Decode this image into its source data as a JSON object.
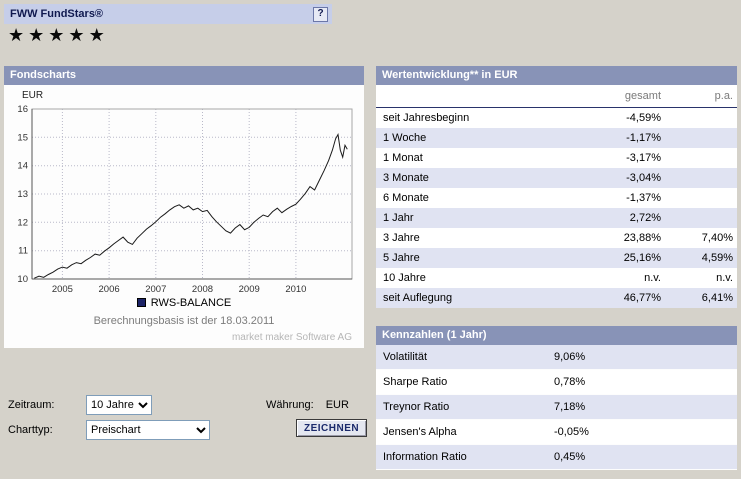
{
  "colors": {
    "page_bg": "#d5d2ca",
    "topbar_bg": "#c6cee9",
    "header_bg": "#8893b7",
    "row_alt": "#e0e3f2",
    "line": "#1a1a1a",
    "navy": "#10194f"
  },
  "header": {
    "title": "FWW FundStars®",
    "help_label": "?",
    "stars": 5
  },
  "fondscharts": {
    "title": "Fondscharts",
    "y_axis_label": "EUR",
    "legend": "RWS-BALANCE",
    "basis_note": "Berechnungsbasis ist der 18.03.2011",
    "watermark": "market maker Software AG",
    "controls": {
      "zeitraum_label": "Zeitraum:",
      "zeitraum_value": "10 Jahre",
      "charttyp_label": "Charttyp:",
      "charttyp_value": "Preischart",
      "waehrung_label": "Währung:",
      "waehrung_value": "EUR",
      "zeichnen_label": "ZEICHNEN"
    }
  },
  "chart_data": {
    "type": "line",
    "title": "RWS-BALANCE",
    "ylabel": "EUR",
    "ylim": [
      10,
      16
    ],
    "yticks": [
      10,
      11,
      12,
      13,
      14,
      15,
      16
    ],
    "xticks": [
      2005,
      2006,
      2007,
      2008,
      2009,
      2010
    ],
    "x_range": [
      2004.35,
      2011.2
    ],
    "grid": true,
    "legend_position": "bottom",
    "series": [
      {
        "name": "RWS-BALANCE",
        "points": [
          [
            2004.4,
            10.03
          ],
          [
            2004.5,
            10.1
          ],
          [
            2004.6,
            10.06
          ],
          [
            2004.7,
            10.16
          ],
          [
            2004.8,
            10.24
          ],
          [
            2004.9,
            10.35
          ],
          [
            2005.0,
            10.42
          ],
          [
            2005.1,
            10.38
          ],
          [
            2005.2,
            10.5
          ],
          [
            2005.3,
            10.58
          ],
          [
            2005.4,
            10.54
          ],
          [
            2005.5,
            10.66
          ],
          [
            2005.6,
            10.76
          ],
          [
            2005.7,
            10.88
          ],
          [
            2005.8,
            10.84
          ],
          [
            2005.9,
            10.98
          ],
          [
            2006.0,
            11.1
          ],
          [
            2006.1,
            11.24
          ],
          [
            2006.2,
            11.36
          ],
          [
            2006.3,
            11.48
          ],
          [
            2006.4,
            11.3
          ],
          [
            2006.5,
            11.22
          ],
          [
            2006.6,
            11.44
          ],
          [
            2006.7,
            11.6
          ],
          [
            2006.8,
            11.76
          ],
          [
            2006.9,
            11.88
          ],
          [
            2007.0,
            12.02
          ],
          [
            2007.1,
            12.18
          ],
          [
            2007.2,
            12.3
          ],
          [
            2007.3,
            12.44
          ],
          [
            2007.4,
            12.55
          ],
          [
            2007.5,
            12.62
          ],
          [
            2007.6,
            12.5
          ],
          [
            2007.7,
            12.58
          ],
          [
            2007.8,
            12.44
          ],
          [
            2007.9,
            12.5
          ],
          [
            2008.0,
            12.38
          ],
          [
            2008.1,
            12.42
          ],
          [
            2008.2,
            12.2
          ],
          [
            2008.3,
            12.02
          ],
          [
            2008.4,
            11.86
          ],
          [
            2008.5,
            11.7
          ],
          [
            2008.6,
            11.62
          ],
          [
            2008.7,
            11.8
          ],
          [
            2008.8,
            11.92
          ],
          [
            2008.9,
            11.74
          ],
          [
            2009.0,
            11.82
          ],
          [
            2009.1,
            12.0
          ],
          [
            2009.2,
            12.14
          ],
          [
            2009.3,
            12.26
          ],
          [
            2009.4,
            12.2
          ],
          [
            2009.5,
            12.38
          ],
          [
            2009.6,
            12.5
          ],
          [
            2009.7,
            12.34
          ],
          [
            2009.8,
            12.46
          ],
          [
            2009.9,
            12.56
          ],
          [
            2010.0,
            12.64
          ],
          [
            2010.1,
            12.82
          ],
          [
            2010.2,
            13.02
          ],
          [
            2010.3,
            13.26
          ],
          [
            2010.4,
            13.14
          ],
          [
            2010.5,
            13.48
          ],
          [
            2010.6,
            13.82
          ],
          [
            2010.7,
            14.18
          ],
          [
            2010.78,
            14.55
          ],
          [
            2010.85,
            14.95
          ],
          [
            2010.9,
            15.1
          ],
          [
            2010.95,
            14.55
          ],
          [
            2011.0,
            14.3
          ],
          [
            2011.05,
            14.72
          ],
          [
            2011.1,
            14.58
          ]
        ]
      }
    ]
  },
  "wertentwicklung": {
    "title": "Wertentwicklung** in EUR",
    "col_gesamt": "gesamt",
    "col_pa": "p.a.",
    "rows": [
      {
        "label": "seit Jahresbeginn",
        "gesamt": "-4,59%",
        "pa": ""
      },
      {
        "label": "1 Woche",
        "gesamt": "-1,17%",
        "pa": ""
      },
      {
        "label": "1 Monat",
        "gesamt": "-3,17%",
        "pa": ""
      },
      {
        "label": "3 Monate",
        "gesamt": "-3,04%",
        "pa": ""
      },
      {
        "label": "6 Monate",
        "gesamt": "-1,37%",
        "pa": ""
      },
      {
        "label": "1 Jahr",
        "gesamt": "2,72%",
        "pa": ""
      },
      {
        "label": "3 Jahre",
        "gesamt": "23,88%",
        "pa": "7,40%"
      },
      {
        "label": "5 Jahre",
        "gesamt": "25,16%",
        "pa": "4,59%"
      },
      {
        "label": "10 Jahre",
        "gesamt": "n.v.",
        "pa": "n.v."
      },
      {
        "label": "seit Auflegung",
        "gesamt": "46,77%",
        "pa": "6,41%"
      }
    ]
  },
  "kennzahlen": {
    "title": "Kennzahlen (1 Jahr)",
    "rows": [
      {
        "label": "Volatilität",
        "value": "9,06%"
      },
      {
        "label": "Sharpe Ratio",
        "value": "0,78%"
      },
      {
        "label": "Treynor Ratio",
        "value": "7,18%"
      },
      {
        "label": "Jensen's Alpha",
        "value": "-0,05%"
      },
      {
        "label": "Information Ratio",
        "value": "0,45%"
      }
    ]
  }
}
